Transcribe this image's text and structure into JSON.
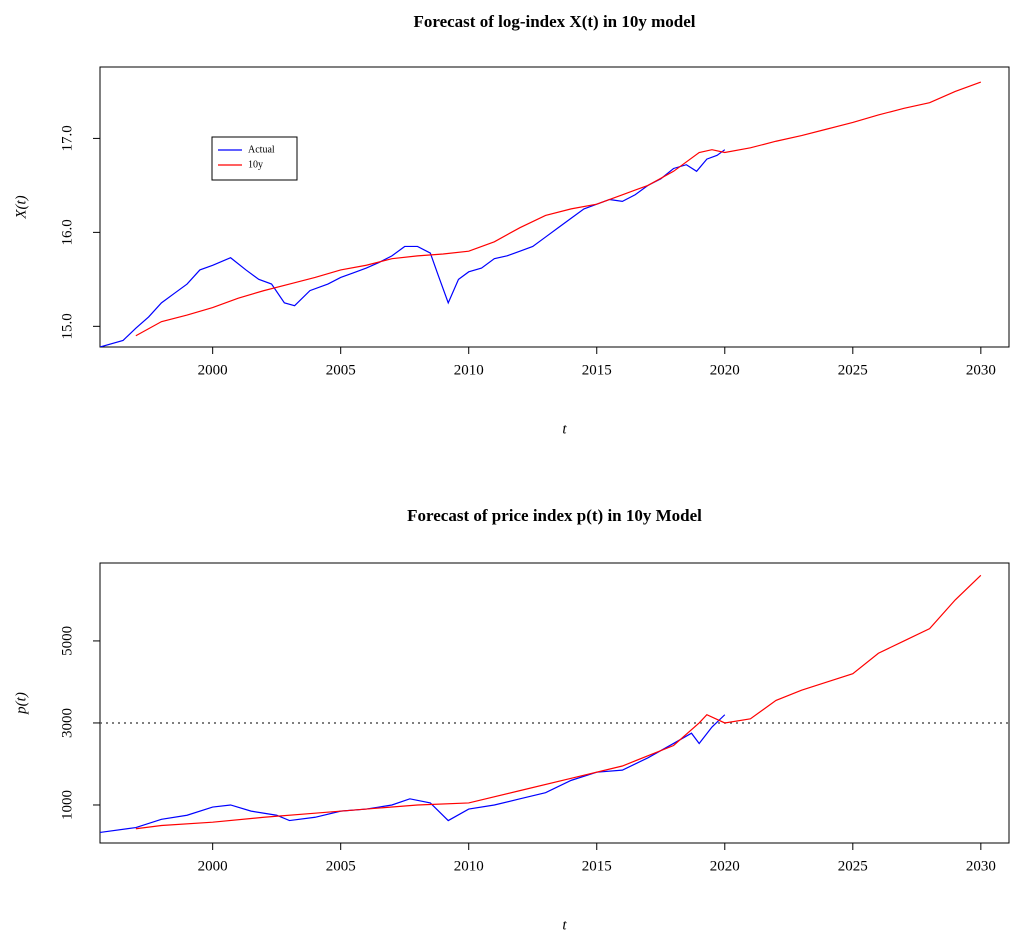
{
  "chart_data": [
    {
      "type": "line",
      "title": "Forecast of log-index X(t) in 10y model",
      "x_label": "t",
      "y_label": "X(t)",
      "xlim": [
        1995.6,
        2031.1
      ],
      "xticks": [
        2000,
        2005,
        2010,
        2015,
        2020,
        2025,
        2030
      ],
      "ylim": [
        14.78,
        17.76
      ],
      "yticks": [
        {
          "value": 15,
          "label": "15.0"
        },
        {
          "value": 16,
          "label": "16.0"
        },
        {
          "value": 17,
          "label": "17.0"
        }
      ],
      "legend": "topleft",
      "series": [
        {
          "name": "Actual",
          "color": "#0000ff",
          "x": [
            1995.6,
            1996.5,
            1997,
            1997.5,
            1998,
            1998.5,
            1999,
            1999.5,
            2000,
            2000.7,
            2001.3,
            2001.8,
            2002.3,
            2002.8,
            2003.2,
            2003.8,
            2004.5,
            2005,
            2005.5,
            2006,
            2006.5,
            2007,
            2007.5,
            2008,
            2008.5,
            2008.8,
            2009.2,
            2009.6,
            2010,
            2010.5,
            2011,
            2011.5,
            2012,
            2012.5,
            2013,
            2013.5,
            2014,
            2014.5,
            2015,
            2015.5,
            2016,
            2016.5,
            2017,
            2017.5,
            2018,
            2018.5,
            2018.9,
            2019.3,
            2019.7,
            2020
          ],
          "values": [
            14.78,
            14.85,
            14.98,
            15.1,
            15.25,
            15.35,
            15.45,
            15.6,
            15.65,
            15.73,
            15.6,
            15.5,
            15.45,
            15.25,
            15.22,
            15.38,
            15.45,
            15.52,
            15.57,
            15.62,
            15.68,
            15.75,
            15.85,
            15.85,
            15.78,
            15.55,
            15.25,
            15.5,
            15.58,
            15.62,
            15.72,
            15.75,
            15.8,
            15.85,
            15.95,
            16.05,
            16.15,
            16.25,
            16.3,
            16.35,
            16.33,
            16.4,
            16.5,
            16.57,
            16.68,
            16.72,
            16.65,
            16.78,
            16.82,
            16.88
          ]
        },
        {
          "name": "10y",
          "color": "#ff0000",
          "x": [
            1997,
            1998,
            1999,
            2000,
            2001,
            2002,
            2003,
            2004,
            2005,
            2006,
            2007,
            2008,
            2009,
            2010,
            2011,
            2012,
            2013,
            2014,
            2015,
            2016,
            2017,
            2018,
            2019,
            2019.5,
            2020,
            2021,
            2022,
            2023,
            2024,
            2025,
            2026,
            2027,
            2028,
            2029,
            2030
          ],
          "values": [
            14.9,
            15.05,
            15.12,
            15.2,
            15.3,
            15.38,
            15.45,
            15.52,
            15.6,
            15.65,
            15.72,
            15.75,
            15.77,
            15.8,
            15.9,
            16.05,
            16.18,
            16.25,
            16.3,
            16.4,
            16.5,
            16.65,
            16.85,
            16.88,
            16.85,
            16.9,
            16.97,
            17.03,
            17.1,
            17.17,
            17.25,
            17.32,
            17.38,
            17.5,
            17.6
          ]
        }
      ]
    },
    {
      "type": "line",
      "title": "Forecast of price index p(t) in 10y Model",
      "x_label": "t",
      "y_label": "p(t)",
      "xlim": [
        1995.6,
        2031.1
      ],
      "xticks": [
        2000,
        2005,
        2010,
        2015,
        2020,
        2025,
        2030
      ],
      "ylim": [
        73,
        6900
      ],
      "yticks": [
        1000,
        3000,
        5000
      ],
      "hline": 3000,
      "series": [
        {
          "name": "Actual",
          "color": "#0000ff",
          "x": [
            1995.6,
            1997,
            1998,
            1999,
            2000,
            2000.7,
            2001.5,
            2002.5,
            2003,
            2004,
            2005,
            2006,
            2007,
            2007.7,
            2008.5,
            2009.2,
            2010,
            2011,
            2012,
            2013,
            2014,
            2015,
            2016,
            2017,
            2018,
            2018.7,
            2019,
            2019.5,
            2020
          ],
          "values": [
            330,
            450,
            650,
            750,
            950,
            1000,
            850,
            750,
            620,
            700,
            850,
            900,
            1000,
            1150,
            1050,
            620,
            900,
            1000,
            1150,
            1300,
            1600,
            1800,
            1850,
            2150,
            2500,
            2750,
            2500,
            2900,
            3200
          ]
        },
        {
          "name": "10y",
          "color": "#ff0000",
          "x": [
            1997,
            1998,
            2000,
            2002,
            2004,
            2006,
            2008,
            2010,
            2012,
            2014,
            2016,
            2018,
            2019,
            2019.3,
            2020,
            2021,
            2022,
            2023,
            2024,
            2025,
            2026,
            2027,
            2028,
            2029,
            2030
          ],
          "values": [
            420,
            500,
            580,
            700,
            800,
            900,
            1000,
            1050,
            1350,
            1650,
            1950,
            2450,
            3000,
            3200,
            3000,
            3100,
            3550,
            3800,
            4000,
            4200,
            4700,
            5000,
            5300,
            6000,
            6600
          ]
        }
      ]
    }
  ]
}
